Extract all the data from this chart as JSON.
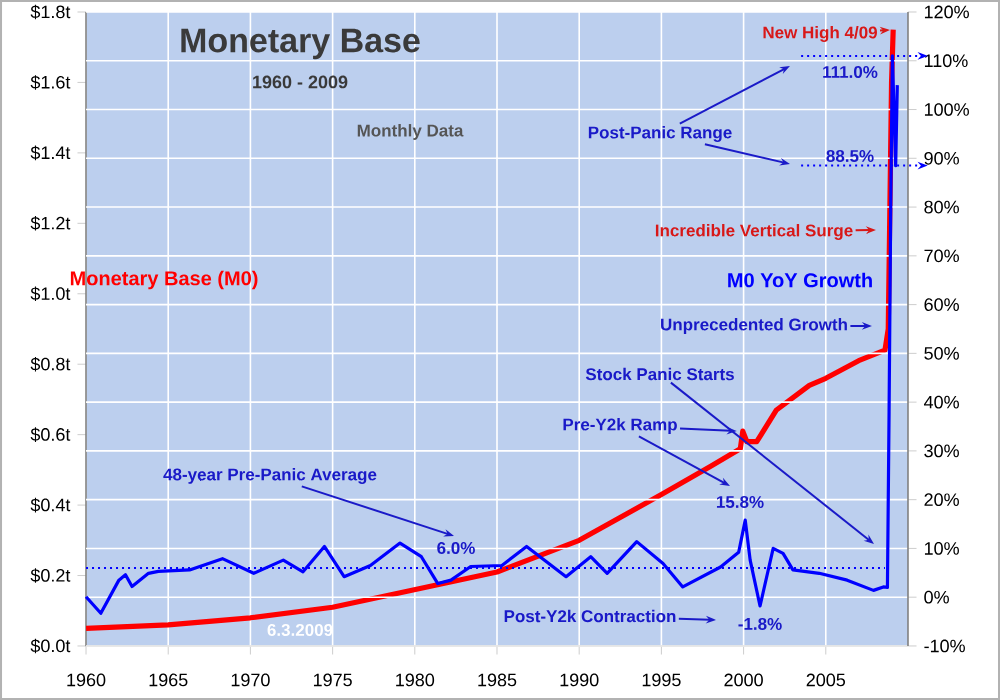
{
  "chart_data": {
    "type": "line",
    "title": "Monetary Base",
    "subtitle": "1960 - 2009",
    "annotations": [
      "Monthly Data",
      "New High 4/09",
      "Post-Panic Range",
      "111.0%",
      "88.5%",
      "Incredible Vertical Surge",
      "Unprecedented Growth",
      "Stock Panic Starts",
      {
        "text": "Pre-Y2k Ramp",
        "x": 1999.95,
        "y": 0.61
      },
      "15.8%",
      "48-year Pre-Panic Average",
      "6.0%",
      "Post-Y2k Contraction",
      "-1.8%",
      "6.3.2009"
    ],
    "xlim": [
      1960,
      2010
    ],
    "xticks": [
      1960,
      1965,
      1970,
      1975,
      1980,
      1985,
      1990,
      1995,
      2000,
      2005
    ],
    "ylim": [
      0,
      1.8
    ],
    "yticks": [
      {
        "value": 0,
        "label": "$0.0t"
      },
      {
        "value": 0.2,
        "label": "$0.2t"
      },
      {
        "value": 0.4,
        "label": "$0.4t"
      },
      {
        "value": 0.6,
        "label": "$0.6t"
      },
      {
        "value": 0.8,
        "label": "$0.8t"
      },
      {
        "value": 1.0,
        "label": "$1.0t"
      },
      {
        "value": 1.2,
        "label": "$1.2t"
      },
      {
        "value": 1.4,
        "label": "$1.4t"
      },
      {
        "value": 1.6,
        "label": "$1.6t"
      },
      {
        "value": 1.8,
        "label": "$1.8t"
      }
    ],
    "y2lim": [
      -10,
      120
    ],
    "y2ticks": [
      {
        "value": -10,
        "label": "-10%"
      },
      {
        "value": 0,
        "label": "0%"
      },
      {
        "value": 10,
        "label": "10%"
      },
      {
        "value": 20,
        "label": "20%"
      },
      {
        "value": 30,
        "label": "30%"
      },
      {
        "value": 40,
        "label": "40%"
      },
      {
        "value": 50,
        "label": "50%"
      },
      {
        "value": 60,
        "label": "60%"
      },
      {
        "value": 70,
        "label": "70%"
      },
      {
        "value": 80,
        "label": "80%"
      },
      {
        "value": 90,
        "label": "90%"
      },
      {
        "value": 100,
        "label": "100%"
      },
      {
        "value": 110,
        "label": "110%"
      },
      {
        "value": 120,
        "label": "120%"
      }
    ],
    "grid": true,
    "ref_lines": [
      {
        "axis": "y2",
        "value": 6,
        "color": "#0000ff",
        "line_style": "dotted"
      },
      {
        "axis": "y2",
        "value": 111.0,
        "color": "#0000ff",
        "line_style": "dotted"
      },
      {
        "axis": "y2",
        "value": 88.5,
        "color": "#0000ff",
        "line_style": "dotted"
      }
    ],
    "series": [
      {
        "name": "Monetary Base (M0)",
        "color": "#ff0000",
        "x": [
          1960,
          1965,
          1970,
          1975,
          1980,
          1985,
          1990,
          1995,
          1998,
          1999.8,
          1999.95,
          2000.2,
          2000.8,
          2002,
          2004,
          2005,
          2007,
          2008.6,
          2008.8,
          2008.9,
          2009.0,
          2009.1
        ],
        "values": [
          0.05,
          0.06,
          0.08,
          0.11,
          0.16,
          0.21,
          0.3,
          0.43,
          0.51,
          0.56,
          0.61,
          0.58,
          0.58,
          0.67,
          0.74,
          0.76,
          0.81,
          0.84,
          0.9,
          1.25,
          1.6,
          1.75
        ]
      },
      {
        "name": "M0 YoY Growth",
        "color": "#0000ff",
        "axis": "y2",
        "x": [
          1960,
          1960.9,
          1962.0,
          1962.4,
          1962.8,
          1963.8,
          1964.4,
          1966.3,
          1968.3,
          1970.2,
          1972.0,
          1973.2,
          1974.5,
          1975.7,
          1977.3,
          1979.1,
          1980.4,
          1981.4,
          1982.2,
          1983.4,
          1985.3,
          1986.8,
          1989.2,
          1990.7,
          1991.7,
          1993.5,
          1995.1,
          1996.3,
          1998.6,
          1999.7,
          2000.1,
          2000.4,
          2001.0,
          2001.8,
          2002.4,
          2003.0,
          2004.6,
          2006.3,
          2007.9,
          2008.5,
          2008.75,
          2008.85,
          2008.95,
          2009.05,
          2009.15,
          2009.25,
          2009.35
        ],
        "values": [
          0.1,
          -3.3,
          3.5,
          4.6,
          2.2,
          4.9,
          5.3,
          5.6,
          7.9,
          4.9,
          7.6,
          5.2,
          10.4,
          4.2,
          6.5,
          11.1,
          8.3,
          2.8,
          3.5,
          6.3,
          6.5,
          10.4,
          4.2,
          8.3,
          4.9,
          11.4,
          6.9,
          2.1,
          6.2,
          9.2,
          15.8,
          7.6,
          -1.8,
          10,
          9,
          5.6,
          4.9,
          3.5,
          1.4,
          2.1,
          2,
          38,
          80,
          111.0,
          100,
          88.5,
          105
        ]
      }
    ]
  }
}
